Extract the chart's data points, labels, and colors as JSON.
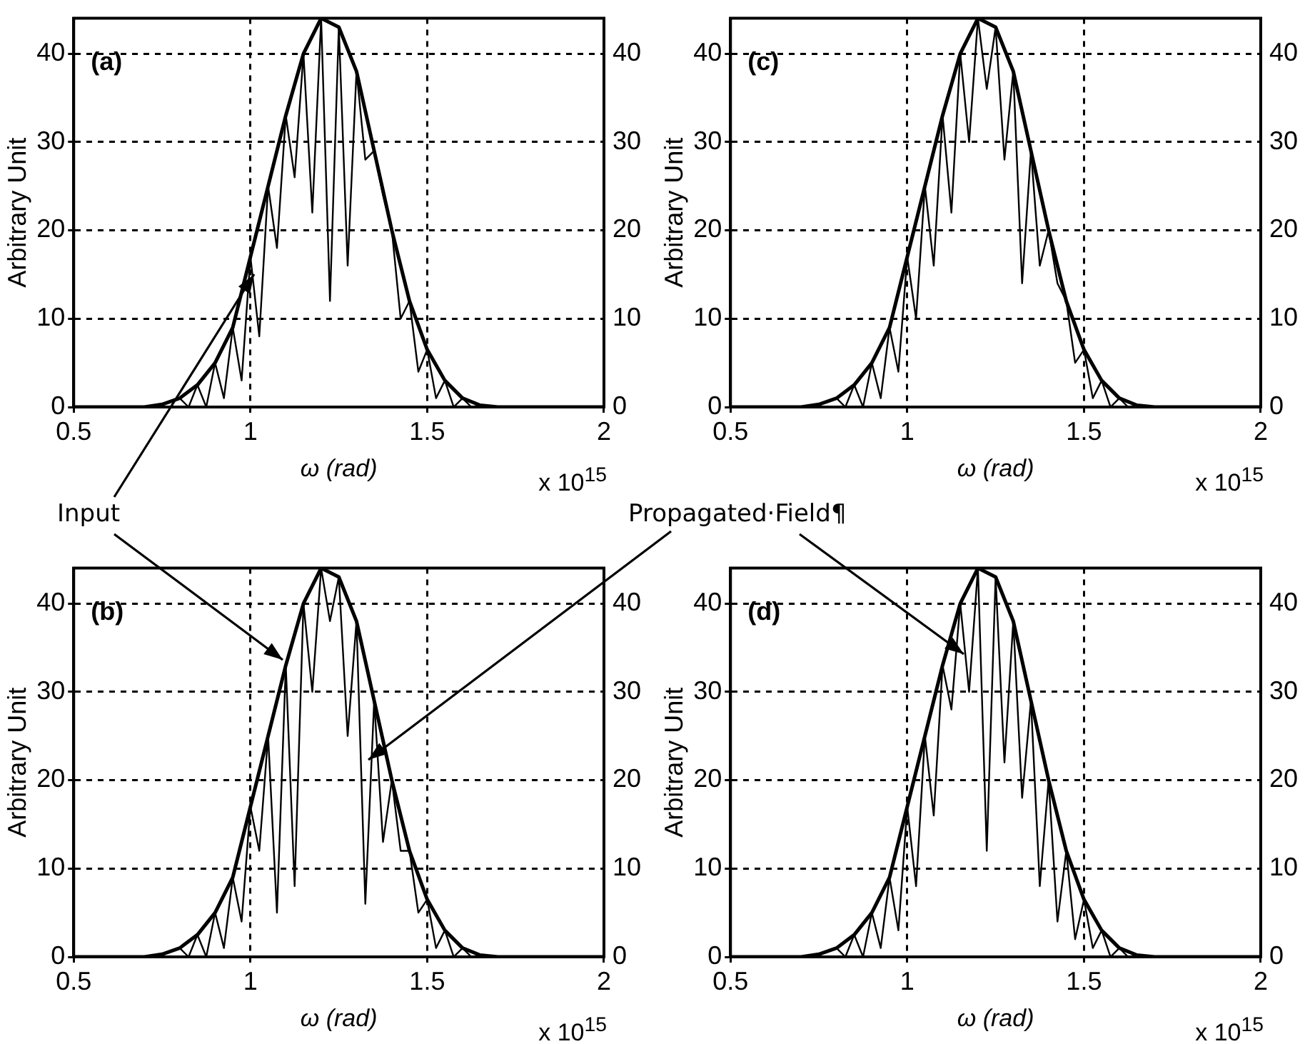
{
  "chart_data": [
    {
      "type": "line",
      "title": "(a)",
      "xlabel": "ω (rad)",
      "ylabel": "Arbitrary Unit",
      "annotations": [
        "x 10$^{15}$",
        "Input"
      ],
      "xlim": [
        0.5,
        2
      ],
      "xticks": [
        0.5,
        1,
        1.5,
        2
      ],
      "ylim": [
        0,
        44
      ],
      "yticks": [
        0,
        10,
        20,
        30,
        40
      ],
      "y2lim": [
        0,
        44
      ],
      "y2ticks": [
        0,
        10,
        20,
        30,
        40
      ],
      "grid": true,
      "marker": "none",
      "line_style": "solid",
      "series": [
        {
          "color": "#000000",
          "x": [
            0.5,
            0.6,
            0.7,
            0.75,
            0.8,
            0.85,
            0.9,
            0.95,
            1,
            1.05,
            1.1,
            1.15,
            1.2,
            1.25,
            1.3,
            1.35,
            1.4,
            1.45,
            1.5,
            1.55,
            1.6,
            1.65,
            1.7,
            1.8,
            2
          ],
          "values": [
            0,
            0,
            0,
            0.3,
            1,
            2.5,
            5,
            9,
            17,
            25,
            33,
            40,
            44,
            43,
            38,
            29,
            20,
            12,
            6.5,
            3,
            1,
            0.2,
            0,
            0,
            0
          ]
        },
        {
          "color": "#000000",
          "x": [
            0.8,
            0.825,
            0.85,
            0.875,
            0.9,
            0.925,
            0.95,
            0.975,
            1,
            1.025,
            1.05,
            1.075,
            1.1,
            1.125,
            1.15,
            1.175,
            1.2,
            1.225,
            1.25,
            1.275,
            1.3,
            1.325,
            1.35,
            1.375,
            1.4,
            1.425,
            1.45,
            1.475,
            1.5,
            1.525,
            1.55,
            1.575,
            1.6,
            1.625,
            1.65
          ],
          "values": [
            1,
            0,
            2.5,
            0,
            5,
            1,
            9,
            3,
            17,
            8,
            25,
            18,
            33,
            26,
            40,
            22,
            44,
            12,
            43,
            16,
            38,
            28,
            29,
            24,
            20,
            10,
            12,
            4,
            6.5,
            1,
            3,
            0,
            1,
            0,
            0.2
          ]
        }
      ]
    },
    {
      "type": "line",
      "title": "(c)",
      "xlabel": "ω (rad)",
      "ylabel": "Arbitrary Unit",
      "annotations": [
        "x 10$^{15}$",
        "Propagated·Field¶"
      ],
      "xlim": [
        0.5,
        2
      ],
      "xticks": [
        0.5,
        1,
        1.5,
        2
      ],
      "ylim": [
        0,
        44
      ],
      "yticks": [
        0,
        10,
        20,
        30,
        40
      ],
      "y2lim": [
        0,
        44
      ],
      "y2ticks": [
        0,
        10,
        20,
        30,
        40
      ],
      "grid": true,
      "marker": "none",
      "line_style": "solid",
      "series": [
        {
          "color": "#000000",
          "x": [
            0.5,
            0.6,
            0.7,
            0.75,
            0.8,
            0.85,
            0.9,
            0.95,
            1,
            1.05,
            1.1,
            1.15,
            1.2,
            1.25,
            1.3,
            1.35,
            1.4,
            1.45,
            1.5,
            1.55,
            1.6,
            1.65,
            1.7,
            1.8,
            2
          ],
          "values": [
            0,
            0,
            0,
            0.3,
            1,
            2.5,
            5,
            9,
            17,
            25,
            33,
            40,
            44,
            43,
            38,
            29,
            20,
            12,
            6.5,
            3,
            1,
            0.2,
            0,
            0,
            0
          ]
        },
        {
          "color": "#000000",
          "x": [
            0.8,
            0.825,
            0.85,
            0.875,
            0.9,
            0.925,
            0.95,
            0.975,
            1,
            1.025,
            1.05,
            1.075,
            1.1,
            1.125,
            1.15,
            1.175,
            1.2,
            1.225,
            1.25,
            1.275,
            1.3,
            1.325,
            1.35,
            1.375,
            1.4,
            1.425,
            1.45,
            1.475,
            1.5,
            1.525,
            1.55,
            1.575,
            1.6,
            1.625,
            1.65
          ],
          "values": [
            1,
            0,
            2.5,
            0,
            5,
            1,
            9,
            4,
            17,
            10,
            25,
            16,
            33,
            22,
            40,
            30,
            44,
            36,
            43,
            28,
            38,
            14,
            29,
            16,
            20,
            14,
            12,
            5,
            6.5,
            1,
            3,
            0,
            1,
            0,
            0.2
          ]
        }
      ]
    },
    {
      "type": "line",
      "title": "(b)",
      "xlabel": "ω (rad)",
      "ylabel": "Arbitrary Unit",
      "annotations": [
        "x 10$^{15}$"
      ],
      "xlim": [
        0.5,
        2
      ],
      "xticks": [
        0.5,
        1,
        1.5,
        2
      ],
      "ylim": [
        0,
        44
      ],
      "yticks": [
        0,
        10,
        20,
        30,
        40
      ],
      "y2lim": [
        0,
        44
      ],
      "y2ticks": [
        0,
        10,
        20,
        30,
        40
      ],
      "grid": true,
      "marker": "none",
      "line_style": "solid",
      "series": [
        {
          "color": "#000000",
          "x": [
            0.5,
            0.6,
            0.7,
            0.75,
            0.8,
            0.85,
            0.9,
            0.95,
            1,
            1.05,
            1.1,
            1.15,
            1.2,
            1.25,
            1.3,
            1.35,
            1.4,
            1.45,
            1.5,
            1.55,
            1.6,
            1.65,
            1.7,
            1.8,
            2
          ],
          "values": [
            0,
            0,
            0,
            0.3,
            1,
            2.5,
            5,
            9,
            17,
            25,
            33,
            40,
            44,
            43,
            38,
            29,
            20,
            12,
            6.5,
            3,
            1,
            0.2,
            0,
            0,
            0
          ]
        },
        {
          "color": "#000000",
          "x": [
            0.8,
            0.825,
            0.85,
            0.875,
            0.9,
            0.925,
            0.95,
            0.975,
            1,
            1.025,
            1.05,
            1.075,
            1.1,
            1.125,
            1.15,
            1.175,
            1.2,
            1.225,
            1.25,
            1.275,
            1.3,
            1.325,
            1.35,
            1.375,
            1.4,
            1.425,
            1.45,
            1.475,
            1.5,
            1.525,
            1.55,
            1.575,
            1.6,
            1.625,
            1.65
          ],
          "values": [
            1,
            0,
            2.5,
            0,
            5,
            1,
            9,
            4,
            17,
            12,
            25,
            5,
            33,
            8,
            40,
            30,
            44,
            38,
            43,
            25,
            38,
            6,
            29,
            13,
            20,
            12,
            12,
            5,
            6.5,
            1,
            3,
            0,
            1,
            0,
            0.2
          ]
        }
      ]
    },
    {
      "type": "line",
      "title": "(d)",
      "xlabel": "ω (rad)",
      "ylabel": "Arbitrary Unit",
      "annotations": [
        "x 10$^{15}$"
      ],
      "xlim": [
        0.5,
        2
      ],
      "xticks": [
        0.5,
        1,
        1.5,
        2
      ],
      "ylim": [
        0,
        44
      ],
      "yticks": [
        0,
        10,
        20,
        30,
        40
      ],
      "y2lim": [
        0,
        44
      ],
      "y2ticks": [
        0,
        10,
        20,
        30,
        40
      ],
      "grid": true,
      "marker": "none",
      "line_style": "solid",
      "series": [
        {
          "color": "#000000",
          "x": [
            0.5,
            0.6,
            0.7,
            0.75,
            0.8,
            0.85,
            0.9,
            0.95,
            1,
            1.05,
            1.1,
            1.15,
            1.2,
            1.25,
            1.3,
            1.35,
            1.4,
            1.45,
            1.5,
            1.55,
            1.6,
            1.65,
            1.7,
            1.8,
            2
          ],
          "values": [
            0,
            0,
            0,
            0.3,
            1,
            2.5,
            5,
            9,
            17,
            25,
            33,
            40,
            44,
            43,
            38,
            29,
            20,
            12,
            6.5,
            3,
            1,
            0.2,
            0,
            0,
            0
          ]
        },
        {
          "color": "#000000",
          "x": [
            0.8,
            0.825,
            0.85,
            0.875,
            0.9,
            0.925,
            0.95,
            0.975,
            1,
            1.025,
            1.05,
            1.075,
            1.1,
            1.125,
            1.15,
            1.175,
            1.2,
            1.225,
            1.25,
            1.275,
            1.3,
            1.325,
            1.35,
            1.375,
            1.4,
            1.425,
            1.45,
            1.475,
            1.5,
            1.525,
            1.55,
            1.575,
            1.6,
            1.625,
            1.65
          ],
          "values": [
            1,
            0,
            2.5,
            0,
            5,
            1,
            9,
            3,
            17,
            8,
            25,
            16,
            33,
            28,
            40,
            30,
            44,
            12,
            43,
            22,
            38,
            18,
            29,
            8,
            20,
            4,
            12,
            2,
            6.5,
            1,
            3,
            0,
            1,
            0,
            0.2
          ]
        }
      ]
    }
  ]
}
